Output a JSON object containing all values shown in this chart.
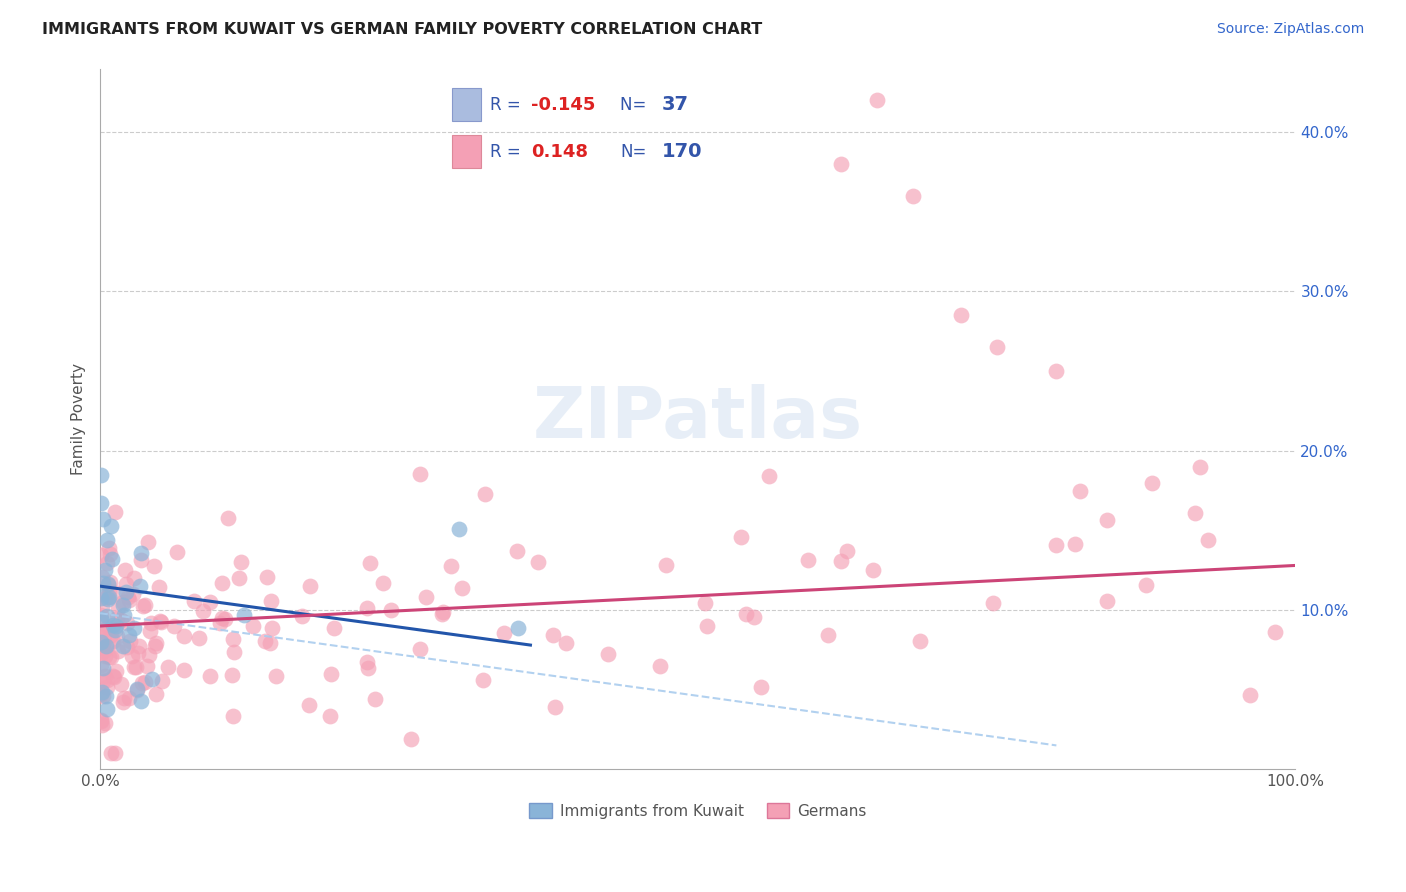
{
  "title": "IMMIGRANTS FROM KUWAIT VS GERMAN FAMILY POVERTY CORRELATION CHART",
  "source_text": "Source: ZipAtlas.com",
  "ylabel": "Family Poverty",
  "xmin": 0.0,
  "xmax": 1.0,
  "ymin": 0.0,
  "ymax": 0.44,
  "gridline_color": "#cccccc",
  "background_color": "#ffffff",
  "series1_color": "#8ab4d8",
  "series2_color": "#f4a0b5",
  "series1_label": "Immigrants from Kuwait",
  "series2_label": "Germans",
  "trendline1_color": "#2255aa",
  "trendline2_color": "#cc4477",
  "trendline_dash_color": "#aaccee",
  "R1": -0.145,
  "N1": 37,
  "R2": 0.148,
  "N2": 170,
  "watermark_color": "#d0dff0",
  "watermark_text": "ZIPatlas",
  "ytick_color": "#3366cc",
  "xtick_color": "#555555",
  "ylabel_color": "#555555",
  "title_color": "#222222",
  "source_color": "#3366cc"
}
